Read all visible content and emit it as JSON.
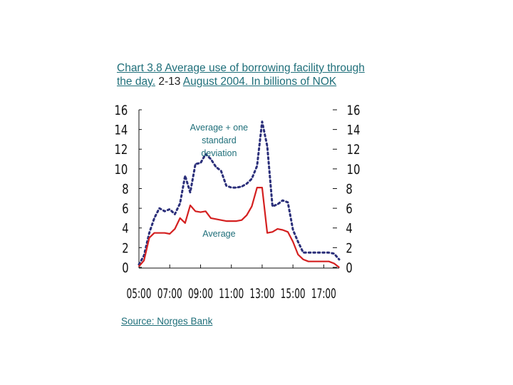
{
  "title": {
    "part1": "Chart 3.8",
    "part2": " Average use of borrowing facility through the day.",
    "part3": " 2-13 ",
    "part4": "August 2004.",
    "part5": " In billions of NOK"
  },
  "source": "Source: Norges Bank",
  "colors": {
    "average": "#d42020",
    "deviation": "#2b2f7a",
    "text": "#1f6f7a"
  },
  "chart_data": {
    "type": "line",
    "title": "Average use of borrowing facility through the day. 2-13 August 2004. In billions of NOK",
    "xlabel": "",
    "ylabel": "",
    "ylim": [
      0,
      16
    ],
    "y_ticks": [
      0,
      2,
      4,
      6,
      8,
      10,
      12,
      14,
      16
    ],
    "right_y_ticks": [
      0,
      2,
      4,
      6,
      8,
      10,
      12,
      14,
      16
    ],
    "x_ticks": [
      "05:00",
      "07:00",
      "09:00",
      "11:00",
      "13:00",
      "15:00",
      "17:00"
    ],
    "x": [
      5,
      5.33,
      5.67,
      6,
      6.33,
      6.67,
      7,
      7.33,
      7.67,
      8,
      8.33,
      8.67,
      9,
      9.33,
      9.67,
      10,
      10.33,
      10.67,
      11,
      11.33,
      11.67,
      12,
      12.33,
      12.67,
      13,
      13.33,
      13.67,
      14,
      14.33,
      14.67,
      15,
      15.33,
      15.67,
      16,
      16.33,
      16.67,
      17,
      17.33,
      17.67,
      18
    ],
    "series": [
      {
        "name": "Average + one standard deviation",
        "style": "dotted",
        "values": [
          0.3,
          1.2,
          3.5,
          5,
          6,
          5.7,
          5.9,
          5.4,
          6.5,
          9.3,
          7.6,
          10.5,
          10.6,
          11.5,
          11,
          10.2,
          9.8,
          8.3,
          8.1,
          8.1,
          8.2,
          8.5,
          9,
          10.3,
          14.8,
          12.3,
          6.2,
          6.4,
          6.8,
          6.6,
          3.8,
          2.6,
          1.5,
          1.5,
          1.5,
          1.5,
          1.5,
          1.5,
          1.4,
          0.8
        ]
      },
      {
        "name": "Average",
        "style": "solid",
        "values": [
          0.1,
          0.7,
          3,
          3.5,
          3.5,
          3.5,
          3.4,
          3.9,
          5,
          4.5,
          6.3,
          5.7,
          5.6,
          5.7,
          5,
          4.9,
          4.8,
          4.7,
          4.7,
          4.7,
          4.8,
          5.3,
          6.2,
          8.1,
          8.1,
          3.5,
          3.6,
          3.9,
          3.8,
          3.6,
          2.6,
          1.3,
          0.8,
          0.6,
          0.6,
          0.6,
          0.6,
          0.6,
          0.4,
          0
        ]
      }
    ],
    "annotations": [
      {
        "label_lines": [
          "Average + one",
          "standard",
          "deviation"
        ],
        "series": "Average + one standard deviation"
      },
      {
        "label_lines": [
          "Average"
        ],
        "series": "Average"
      }
    ],
    "grid": false,
    "legend": "none"
  }
}
